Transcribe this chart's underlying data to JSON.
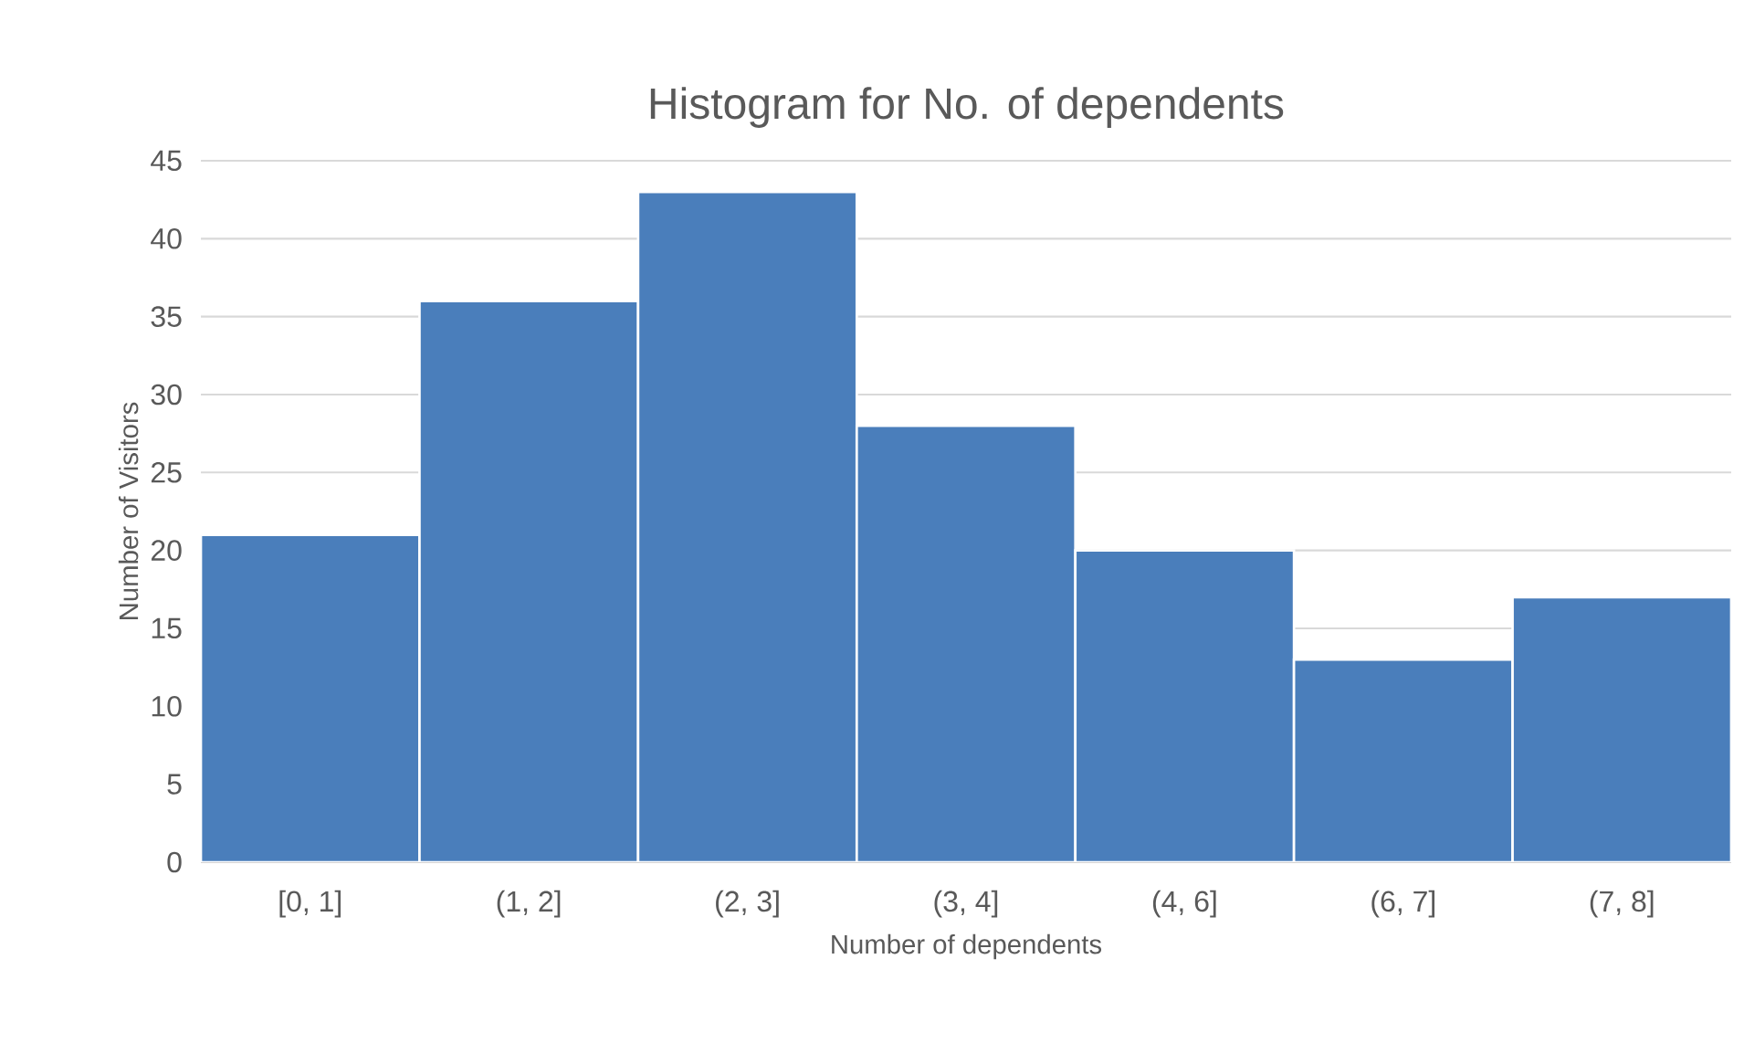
{
  "chart_data": {
    "type": "bar",
    "title": "Histogram for No. of dependents",
    "xlabel": "Number of dependents",
    "ylabel": "Number of Visitors",
    "categories": [
      "[0, 1]",
      "(1, 2]",
      "(2, 3]",
      "(3, 4]",
      "(4, 6]",
      "(6, 7]",
      "(7, 8]"
    ],
    "values": [
      21,
      36,
      43,
      28,
      20,
      13,
      17
    ],
    "color": "#4a7ebb",
    "ylim": [
      0,
      45
    ],
    "yticks": [
      0,
      5,
      10,
      15,
      20,
      25,
      30,
      35,
      40,
      45
    ],
    "grid": "y"
  }
}
